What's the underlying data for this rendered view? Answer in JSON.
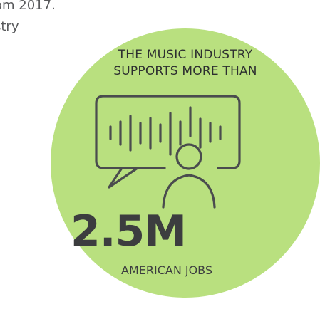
{
  "intro_text": {
    "line1": "om 2017.",
    "line2": "stry"
  },
  "infographic": {
    "headline_line1": "THE MUSIC INDUSTRY",
    "headline_line2": "SUPPORTS MORE THAN",
    "big_number": "2.5M",
    "sub_label": "AMERICAN JOBS",
    "icon": "speech-bubble-soundwave-person-icon"
  },
  "colors": {
    "circle": "#b9e07f",
    "text": "#3c3d3f",
    "icon_stroke": "#4a4c4e"
  }
}
